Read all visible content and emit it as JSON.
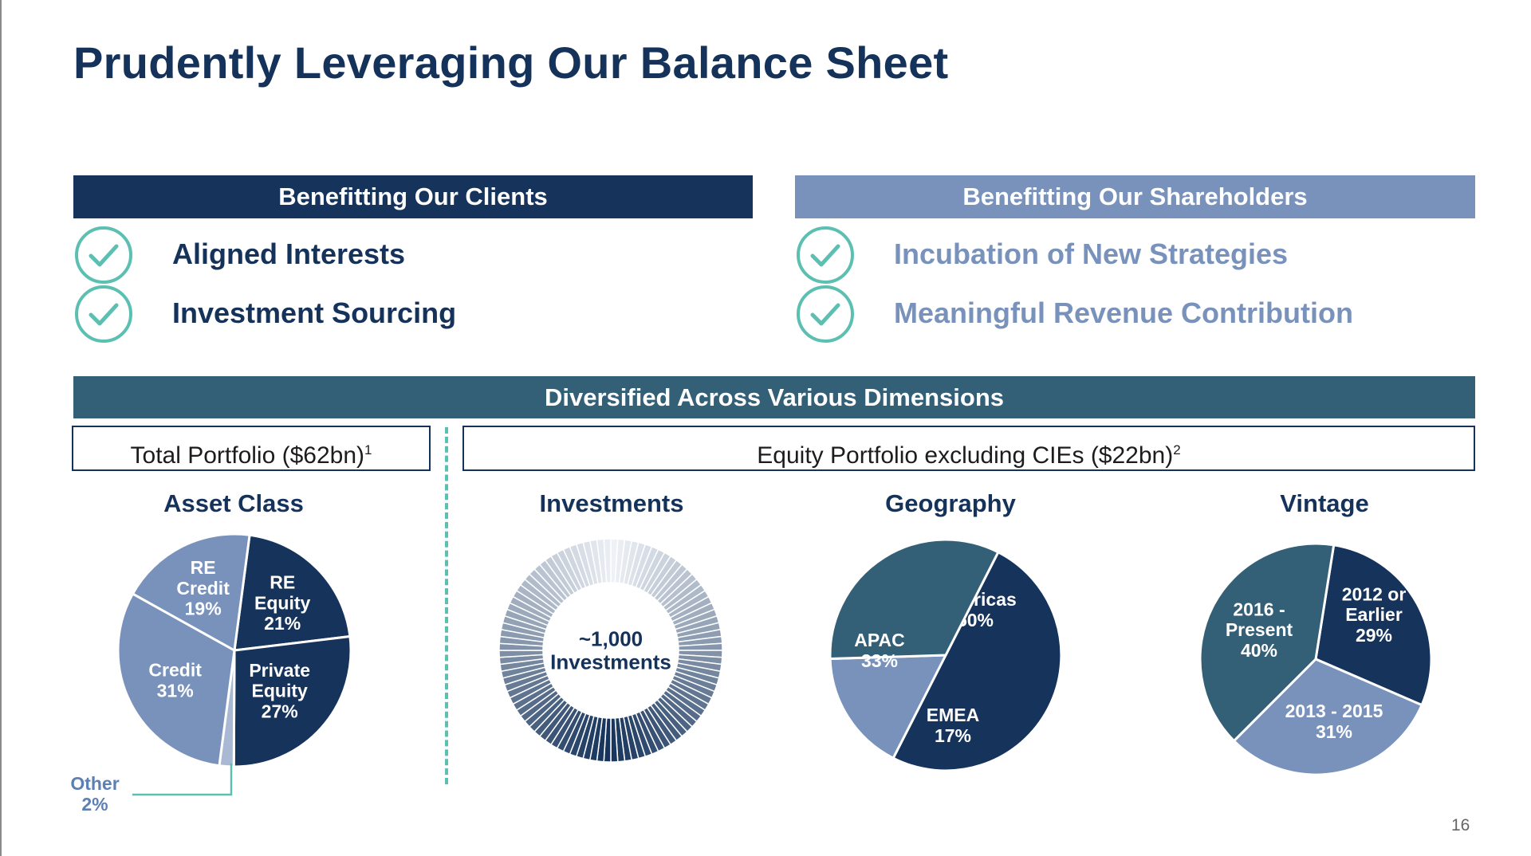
{
  "title": "Prudently Leveraging Our Balance Sheet",
  "headers": {
    "clients": "Benefitting Our Clients",
    "shareholders": "Benefitting Our Shareholders",
    "diversified": "Diversified Across Various Dimensions"
  },
  "clients_items": [
    {
      "label": "Aligned Interests",
      "icon": "check-circle-icon"
    },
    {
      "label": "Investment Sourcing",
      "icon": "check-circle-icon"
    }
  ],
  "shareholders_items": [
    {
      "label": "Incubation of New Strategies",
      "icon": "check-circle-icon"
    },
    {
      "label": "Meaningful Revenue Contribution",
      "icon": "check-circle-icon"
    }
  ],
  "boxes": {
    "total_text": "Total Portfolio ($62bn)",
    "total_sup": "1",
    "equity_text": "Equity Portfolio excluding CIEs ($22bn)",
    "equity_sup": "2"
  },
  "page_number": "16",
  "colors": {
    "navy": "#15335b",
    "slate": "#335f77",
    "periwinkle": "#7892bc",
    "teal": "#5bbfb2",
    "other_slice": "#a9b9d3"
  },
  "chart_data": [
    {
      "type": "pie",
      "title": "Asset Class",
      "slices": [
        {
          "label": [
            "RE",
            "Equity",
            "21%"
          ],
          "value": 21,
          "color": "#15335b"
        },
        {
          "label": [
            "Private",
            "Equity",
            "27%"
          ],
          "value": 27,
          "color": "#15335b"
        },
        {
          "label": [
            "Other",
            "2%"
          ],
          "value": 2,
          "color": "#a9b9d3"
        },
        {
          "label": [
            "Credit",
            "31%"
          ],
          "value": 31,
          "color": "#7892bc"
        },
        {
          "label": [
            "RE",
            "Credit",
            "19%"
          ],
          "value": 19,
          "color": "#7892bc"
        }
      ]
    },
    {
      "type": "pie",
      "title": "Investments",
      "center_label": [
        "~1,000",
        "Investments"
      ],
      "gradient": [
        "#15335b",
        "#eef1f6"
      ]
    },
    {
      "type": "pie",
      "title": "Geography",
      "slices": [
        {
          "label": [
            "Americas",
            "50%"
          ],
          "value": 50,
          "color": "#15335b"
        },
        {
          "label": [
            "EMEA",
            "17%"
          ],
          "value": 17,
          "color": "#7892bc"
        },
        {
          "label": [
            "APAC",
            "33%"
          ],
          "value": 33,
          "color": "#335f77"
        }
      ]
    },
    {
      "type": "pie",
      "title": "Vintage",
      "slices": [
        {
          "label": [
            "2012 or",
            "Earlier",
            "29%"
          ],
          "value": 29,
          "color": "#15335b"
        },
        {
          "label": [
            "2013 - 2015",
            "31%"
          ],
          "value": 31,
          "color": "#7892bc"
        },
        {
          "label": [
            "2016 -",
            "Present",
            "40%"
          ],
          "value": 40,
          "color": "#335f77"
        }
      ]
    }
  ]
}
